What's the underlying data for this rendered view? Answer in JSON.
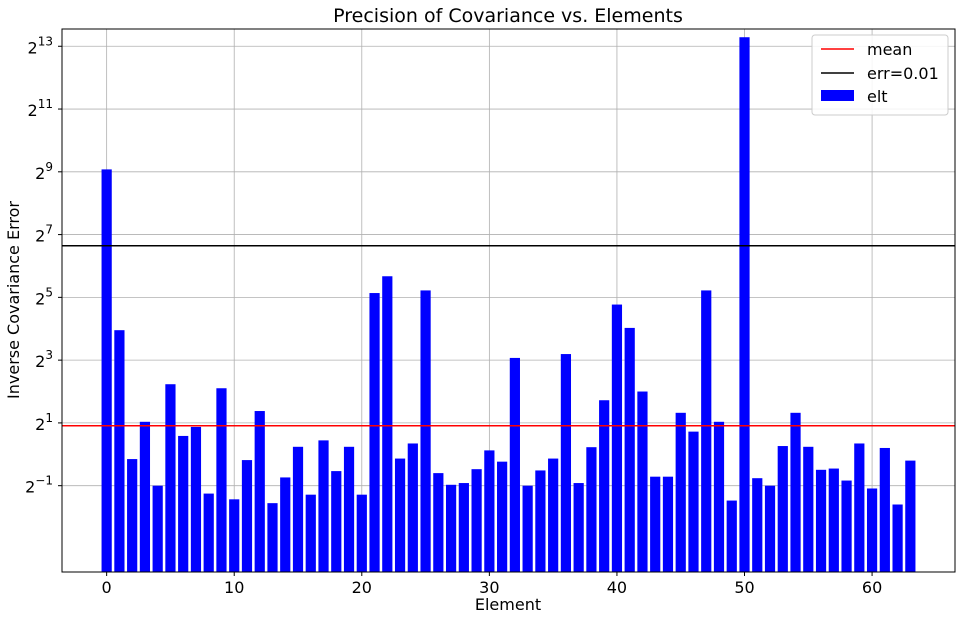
{
  "chart_data": {
    "type": "bar",
    "title": "Precision of Covariance vs. Elements",
    "xlabel": "Element",
    "ylabel": "Inverse Covariance Error",
    "x": [
      0,
      1,
      2,
      3,
      4,
      5,
      6,
      7,
      8,
      9,
      10,
      11,
      12,
      13,
      14,
      15,
      16,
      17,
      18,
      19,
      20,
      21,
      22,
      23,
      24,
      25,
      26,
      27,
      28,
      29,
      30,
      31,
      32,
      33,
      34,
      35,
      36,
      37,
      38,
      39,
      40,
      41,
      42,
      43,
      44,
      45,
      46,
      47,
      48,
      49,
      50,
      51,
      52,
      53,
      54,
      55,
      56,
      57,
      58,
      59,
      60,
      61,
      62,
      63
    ],
    "values": [
      540,
      15.5,
      0.9,
      2.05,
      0.5,
      4.7,
      1.5,
      1.83,
      0.42,
      4.3,
      0.37,
      0.88,
      2.6,
      0.34,
      0.6,
      1.18,
      0.41,
      1.36,
      0.69,
      1.18,
      0.41,
      35.2,
      51.0,
      0.91,
      1.27,
      37.3,
      0.66,
      0.51,
      0.53,
      0.72,
      1.09,
      0.85,
      8.4,
      0.5,
      0.7,
      0.91,
      9.15,
      0.53,
      1.17,
      3.3,
      27.3,
      16.3,
      4.0,
      0.61,
      0.61,
      2.5,
      1.65,
      37.3,
      2.05,
      0.36,
      10000,
      0.59,
      0.5,
      1.2,
      2.5,
      1.18,
      0.71,
      0.73,
      0.56,
      1.27,
      0.47,
      1.15,
      0.33,
      0.87
    ],
    "mean": 1.88,
    "err_line": 100,
    "xlim": [
      -3.5,
      66.5
    ],
    "ylim_log2": [
      -3.75,
      13.55
    ],
    "y_scale": "log2",
    "xticks": [
      0,
      10,
      20,
      30,
      40,
      50,
      60
    ],
    "yticks_exp": [
      -1,
      1,
      3,
      5,
      7,
      9,
      11,
      13
    ],
    "yticks_base": "2",
    "grid": true,
    "legend": {
      "placement": "top-right",
      "entries": [
        "mean",
        "err=0.01",
        "elt"
      ]
    },
    "colors": {
      "bars": "#0000ff",
      "mean": "#ff0000",
      "err": "#000000",
      "grid": "#b0b0b0"
    }
  }
}
